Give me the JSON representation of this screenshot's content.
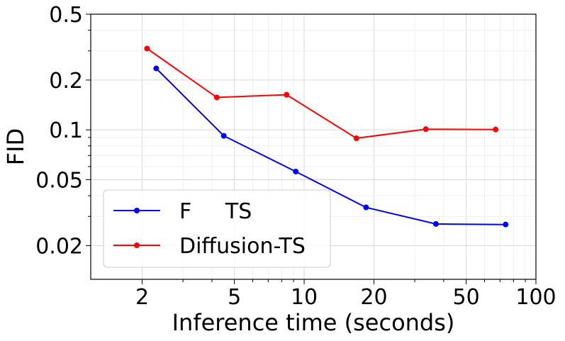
{
  "chart_data": {
    "type": "line",
    "title": "",
    "xlabel": "Inference time (seconds)",
    "ylabel": "FID",
    "xscale": "log",
    "yscale": "log",
    "xlim": [
      1.2,
      100
    ],
    "ylim": [
      0.0125,
      0.5
    ],
    "grid": true,
    "legend_position": "bottom-left",
    "x_ticks": [
      {
        "value": 2,
        "label": "2"
      },
      {
        "value": 5,
        "label": "5"
      },
      {
        "value": 10,
        "label": "10"
      },
      {
        "value": 20,
        "label": "20"
      },
      {
        "value": 50,
        "label": "50"
      },
      {
        "value": 100,
        "label": "100"
      }
    ],
    "y_ticks": [
      {
        "value": 0.02,
        "label": "0.02"
      },
      {
        "value": 0.05,
        "label": "0.05"
      },
      {
        "value": 0.1,
        "label": "0.1"
      },
      {
        "value": 0.2,
        "label": "0.2"
      },
      {
        "value": 0.5,
        "label": "0.5"
      }
    ],
    "series": [
      {
        "name": "F     TS",
        "color": "#0000ff",
        "x": [
          2.3,
          4.5,
          9.2,
          18.5,
          37,
          74
        ],
        "y": [
          0.235,
          0.092,
          0.056,
          0.034,
          0.027,
          0.0268
        ]
      },
      {
        "name": "Diffusion-TS",
        "color": "#ff0000",
        "x": [
          2.1,
          4.2,
          8.4,
          16.8,
          33.5,
          67
        ],
        "y": [
          0.31,
          0.157,
          0.163,
          0.089,
          0.101,
          0.1005
        ]
      }
    ]
  }
}
